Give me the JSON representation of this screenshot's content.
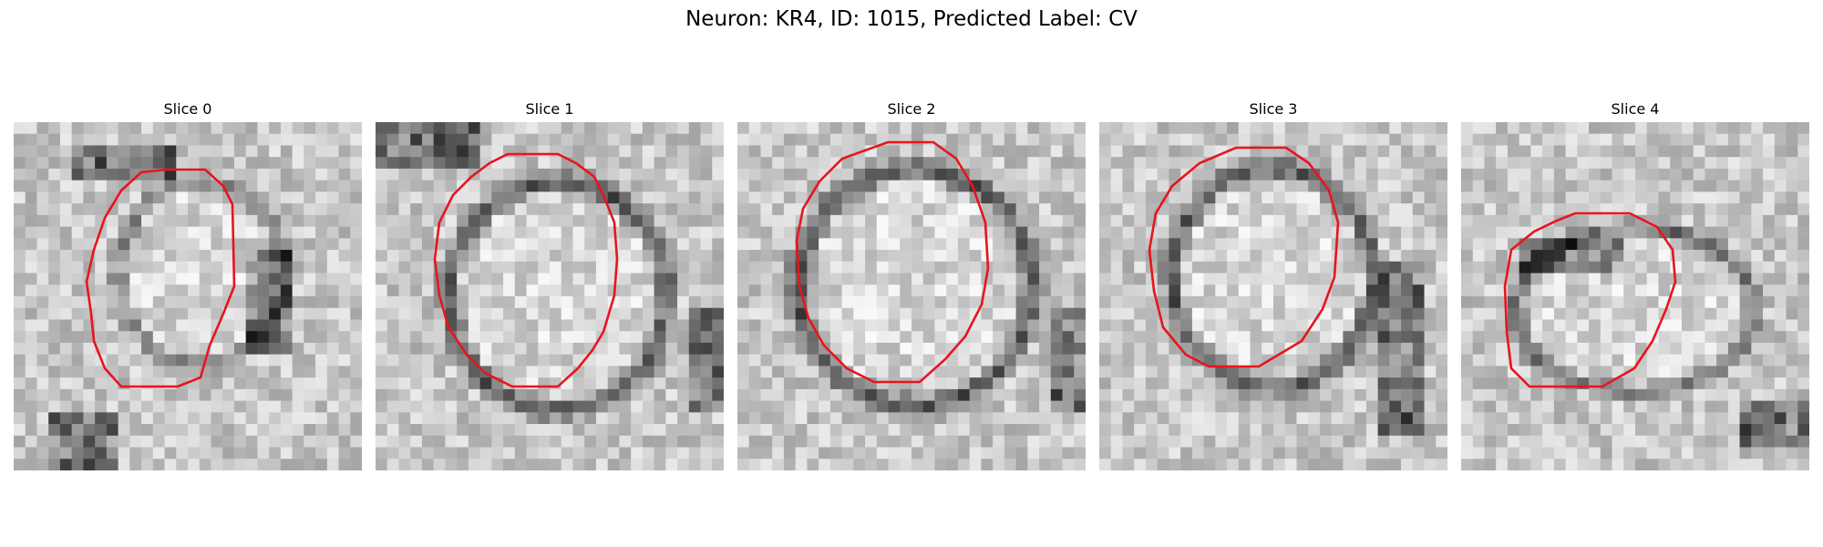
{
  "figure": {
    "title": "Neuron: KR4, ID: 1015, Predicted Label: CV",
    "contour_color": "#e8141c",
    "panels": [
      {
        "label": "Slice 0",
        "ring": "partial",
        "image": "grayscale-microscopy-slice"
      },
      {
        "label": "Slice 1",
        "ring": "full",
        "image": "grayscale-microscopy-slice"
      },
      {
        "label": "Slice 2",
        "ring": "full",
        "image": "grayscale-microscopy-slice"
      },
      {
        "label": "Slice 3",
        "ring": "full",
        "image": "grayscale-microscopy-slice"
      },
      {
        "label": "Slice 4",
        "ring": "lower",
        "image": "grayscale-microscopy-slice"
      }
    ]
  }
}
